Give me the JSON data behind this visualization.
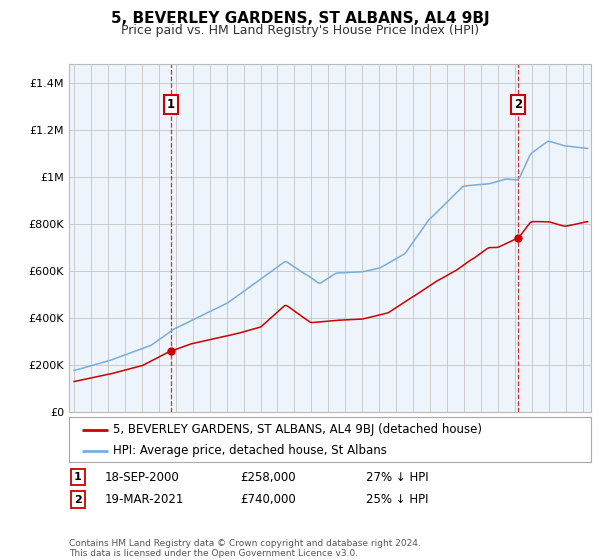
{
  "title": "5, BEVERLEY GARDENS, ST ALBANS, AL4 9BJ",
  "subtitle": "Price paid vs. HM Land Registry's House Price Index (HPI)",
  "ylabel_ticks": [
    "£0",
    "£200K",
    "£400K",
    "£600K",
    "£800K",
    "£1M",
    "£1.2M",
    "£1.4M"
  ],
  "ytick_values": [
    0,
    200000,
    400000,
    600000,
    800000,
    1000000,
    1200000,
    1400000
  ],
  "ylim": [
    0,
    1480000
  ],
  "xlim_start": 1994.7,
  "xlim_end": 2025.5,
  "sale1_date": 2000.72,
  "sale1_price": 258000,
  "sale1_label": "1",
  "sale2_date": 2021.22,
  "sale2_price": 740000,
  "sale2_label": "2",
  "red_color": "#cc0000",
  "blue_color": "#7aaddb",
  "chart_bg": "#eef4fb",
  "background_color": "#ffffff",
  "grid_color": "#bbbbbb",
  "legend_house": "5, BEVERLEY GARDENS, ST ALBANS, AL4 9BJ (detached house)",
  "legend_hpi": "HPI: Average price, detached house, St Albans",
  "annotation1_date": "18-SEP-2000",
  "annotation1_price": "£258,000",
  "annotation1_pct": "27% ↓ HPI",
  "annotation2_date": "19-MAR-2021",
  "annotation2_price": "£740,000",
  "annotation2_pct": "25% ↓ HPI",
  "footer": "Contains HM Land Registry data © Crown copyright and database right 2024.\nThis data is licensed under the Open Government Licence v3.0."
}
